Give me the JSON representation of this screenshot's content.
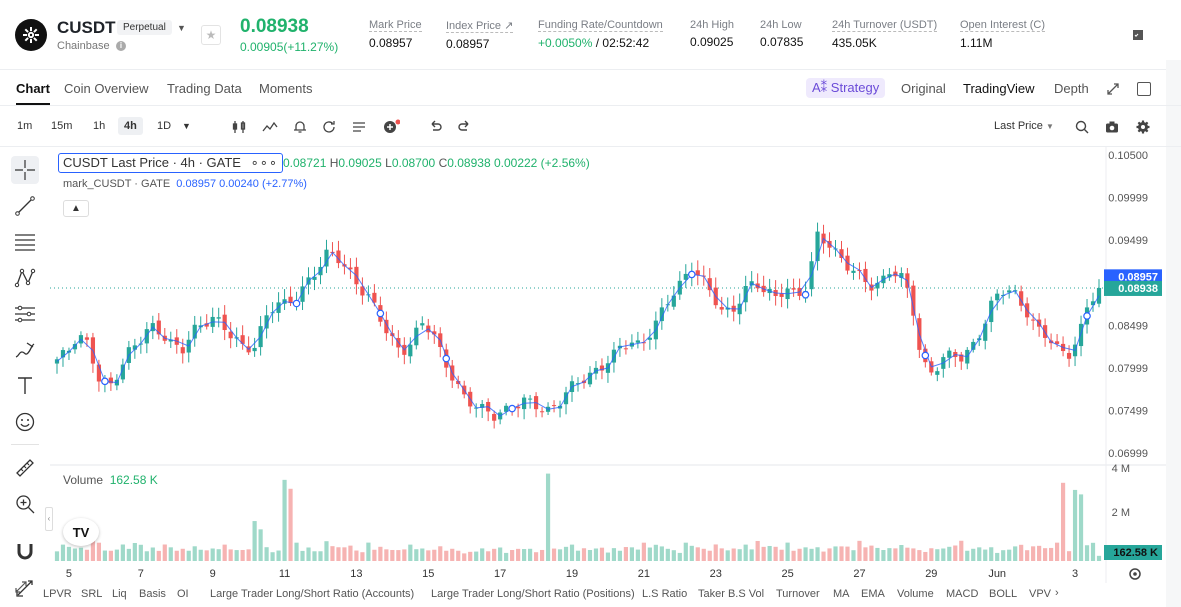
{
  "header": {
    "symbol": "CUSDT",
    "badge": "Perpetual",
    "subtitle": "Chainbase",
    "last_price": "0.08938",
    "change": "0.00905(+11.27%)",
    "stats": [
      {
        "label": "Mark Price",
        "value": "0.08957"
      },
      {
        "label": "Index Price ↗",
        "value": "0.08957"
      },
      {
        "label": "Funding Rate/Countdown",
        "value_green": "+0.0050%",
        "value": "/ 02:52:42"
      },
      {
        "label": "24h High",
        "value": "0.09025"
      },
      {
        "label": "24h Low",
        "value": "0.07835"
      },
      {
        "label": "24h Turnover (USDT)",
        "value": "435.05K"
      },
      {
        "label": "Open Interest (C)",
        "value": "1.11M"
      }
    ]
  },
  "tabs": [
    {
      "label": "Chart",
      "active": true
    },
    {
      "label": "Coin Overview"
    },
    {
      "label": "Trading Data"
    },
    {
      "label": "Moments"
    }
  ],
  "modes": {
    "strategy": "Strategy",
    "items": [
      {
        "label": "Original"
      },
      {
        "label": "TradingView",
        "active": true
      },
      {
        "label": "Depth"
      }
    ]
  },
  "toolbar": {
    "intervals": [
      "1m",
      "15m",
      "1h",
      "4h",
      "1D"
    ],
    "active_interval": "4h",
    "price_source": "Last Price"
  },
  "chart_legend": {
    "title": "CUSDT Last Price · 4h · GATE",
    "ohlc_text": "0.08721",
    "high_label": "H",
    "high": "0.09025",
    "low_label": "L",
    "low": "0.08700",
    "close_label": "C",
    "close": "0.08938",
    "change": "0.00222 (+2.56%)",
    "mark_series": "mark_CUSDT · GATE",
    "mark_value": "0.08957",
    "mark_change": "0.00240 (+2.77%)",
    "volume_label": "Volume",
    "volume_value": "162.58 K"
  },
  "colors": {
    "up": "#26a69a",
    "down": "#ef5350",
    "mark_line": "#2962ff",
    "accent_green": "#20b26c"
  },
  "chart_data": {
    "type": "candlestick",
    "interval": "4h",
    "price_axis": {
      "ylim": [
        0.06999,
        0.105
      ],
      "ticks": [
        "0.10500",
        "0.09999",
        "0.09499",
        "0.08499",
        "0.07999",
        "0.07499",
        "0.06999"
      ],
      "current_mark": "0.08957",
      "current_last": "0.08938"
    },
    "volume_axis": {
      "ylim": [
        0,
        4000000
      ],
      "ticks": [
        "4 M",
        "2 M"
      ],
      "current": "162.58 K"
    },
    "x_tick_labels": [
      "5",
      "7",
      "9",
      "11",
      "13",
      "15",
      "17",
      "19",
      "21",
      "23",
      "25",
      "27",
      "29",
      "Jun",
      "3"
    ],
    "x_tick_positions": [
      2,
      14,
      26,
      38,
      50,
      62,
      74,
      86,
      98,
      110,
      122,
      134,
      146,
      157,
      170
    ],
    "close_path": [
      0.081,
      0.0815,
      0.0835,
      0.0825,
      0.079,
      0.078,
      0.08,
      0.082,
      0.083,
      0.0845,
      0.084,
      0.083,
      0.0825,
      0.0845,
      0.085,
      0.0855,
      0.0845,
      0.0835,
      0.0825,
      0.083,
      0.086,
      0.0875,
      0.087,
      0.088,
      0.09,
      0.092,
      0.094,
      0.093,
      0.091,
      0.089,
      0.088,
      0.086,
      0.084,
      0.082,
      0.083,
      0.085,
      0.084,
      0.081,
      0.079,
      0.077,
      0.076,
      0.075,
      0.074,
      0.0745,
      0.0755,
      0.0765,
      0.076,
      0.075,
      0.0755,
      0.077,
      0.078,
      0.079,
      0.08,
      0.0815,
      0.0825,
      0.083,
      0.082,
      0.084,
      0.0865,
      0.089,
      0.0905,
      0.092,
      0.09,
      0.088,
      0.086,
      0.087,
      0.0895,
      0.0905,
      0.089,
      0.088,
      0.089,
      0.088,
      0.09,
      0.096,
      0.095,
      0.093,
      0.0915,
      0.0905,
      0.0895,
      0.09,
      0.092,
      0.091,
      0.088,
      0.08,
      0.079,
      0.081,
      0.082,
      0.0815,
      0.083,
      0.085,
      0.088,
      0.089,
      0.0885,
      0.087,
      0.085,
      0.084,
      0.082,
      0.081,
      0.083,
      0.088,
      0.0894
    ],
    "volume_path": [
      0.15,
      0.18,
      0.15,
      0.16,
      0.25,
      0.12,
      0.15,
      0.18,
      0.2,
      0.12,
      0.15,
      0.18,
      0.12,
      0.14,
      0.16,
      0.12,
      0.15,
      0.18,
      0.12,
      0.14,
      0.45,
      0.15,
      0.12,
      0.95,
      0.2,
      0.15,
      0.12,
      0.22,
      0.15,
      0.18,
      0.12,
      0.2,
      0.16,
      0.14,
      0.12,
      0.18,
      0.15,
      0.12,
      0.16,
      0.14,
      0.12,
      0.1,
      0.14,
      0.12,
      0.15,
      0.12,
      0.16,
      0.14,
      0.12,
      0.15,
      0.14,
      0.18,
      0.16,
      0.14,
      0.15,
      0.12,
      0.14,
      0.16,
      0.15,
      0.2,
      0.18,
      0.15,
      0.12,
      0.2,
      0.16,
      0.14,
      0.18,
      0.12,
      0.15,
      0.18,
      0.22,
      0.18,
      0.16,
      0.2,
      0.14,
      0.16,
      0.15,
      0.14,
      0.18,
      0.16,
      0.22,
      0.18,
      0.15,
      0.14,
      0.18,
      0.16,
      0.12,
      0.14,
      0.15,
      0.16,
      0.22,
      0.14,
      0.16,
      0.15,
      0.12,
      0.14,
      0.18,
      0.16,
      0.2,
      0.15,
      0.25,
      0.14,
      0.8,
      0.2,
      0.08
    ]
  },
  "indicators": [
    "LPVR",
    "SRL",
    "Liq",
    "Basis",
    "OI",
    "Large Trader Long/Short Ratio (Accounts)",
    "Large Trader Long/Short Ratio (Positions)",
    "L.S Ratio",
    "Taker B.S Vol",
    "Turnover",
    "MA",
    "EMA",
    "Volume",
    "MACD",
    "BOLL",
    "VPV"
  ]
}
